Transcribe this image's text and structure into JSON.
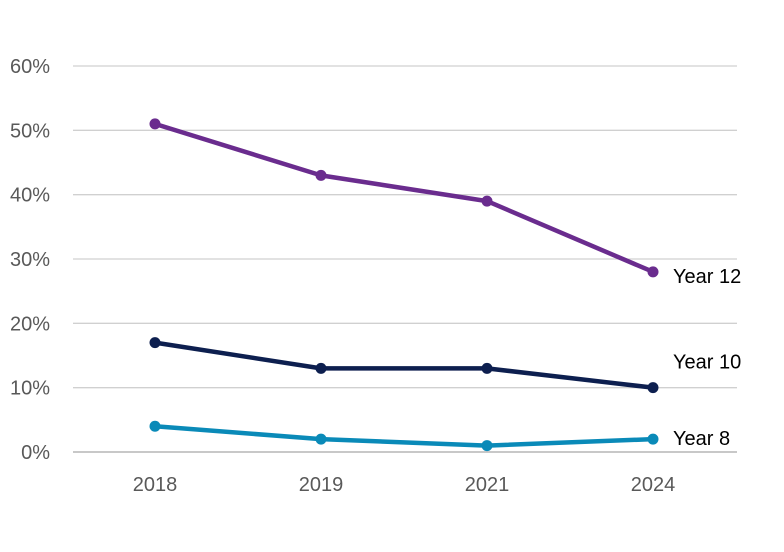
{
  "chart_data": {
    "type": "line",
    "title": "",
    "xlabel": "",
    "ylabel": "",
    "categories": [
      "2018",
      "2019",
      "2021",
      "2024"
    ],
    "ylim": [
      0,
      60
    ],
    "yticks": [
      0,
      10,
      20,
      30,
      40,
      50,
      60
    ],
    "ytick_labels": [
      "0%",
      "10%",
      "20%",
      "30%",
      "40%",
      "50%",
      "60%"
    ],
    "grid": true,
    "legend": "direct labels at line ends",
    "series": [
      {
        "name": "Year 12",
        "values": [
          51,
          43,
          39,
          28
        ],
        "color": "#6a2c8e"
      },
      {
        "name": "Year 10",
        "values": [
          17,
          13,
          13,
          10
        ],
        "color": "#0d1f4f"
      },
      {
        "name": "Year 8",
        "values": [
          4,
          2,
          1,
          2
        ],
        "color": "#0a8ab8"
      }
    ]
  }
}
